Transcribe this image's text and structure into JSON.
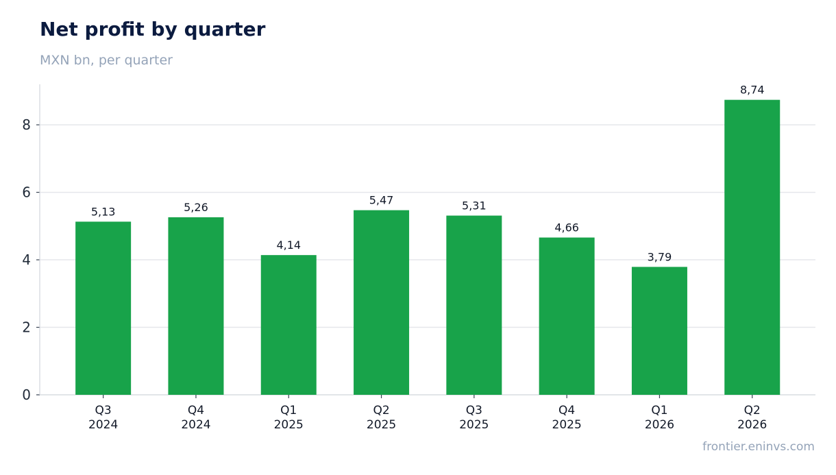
{
  "header": {
    "title": "Net profit by quarter",
    "subtitle": "MXN bn, per quarter"
  },
  "footer": {
    "source": "frontier.eninvs.com"
  },
  "colors": {
    "bar": "#18a34a",
    "grid": "#e5e7eb",
    "axis": "#d1d5db"
  },
  "chart_data": {
    "type": "bar",
    "title": "Net profit by quarter",
    "subtitle": "MXN bn, per quarter",
    "xlabel": "",
    "ylabel": "",
    "categories": [
      [
        "Q3",
        "2024"
      ],
      [
        "Q4",
        "2024"
      ],
      [
        "Q1",
        "2025"
      ],
      [
        "Q2",
        "2025"
      ],
      [
        "Q3",
        "2025"
      ],
      [
        "Q4",
        "2025"
      ],
      [
        "Q1",
        "2026"
      ],
      [
        "Q2",
        "2026"
      ]
    ],
    "values": [
      5.13,
      5.26,
      4.14,
      5.47,
      5.31,
      4.66,
      3.79,
      8.74
    ],
    "data_labels": [
      "5,13",
      "5,26",
      "4,14",
      "5,47",
      "5,31",
      "4,66",
      "3,79",
      "8,74"
    ],
    "yticks": [
      0,
      2,
      4,
      6,
      8
    ],
    "ylim": [
      0,
      9.2
    ],
    "grid": true,
    "legend": "none"
  }
}
